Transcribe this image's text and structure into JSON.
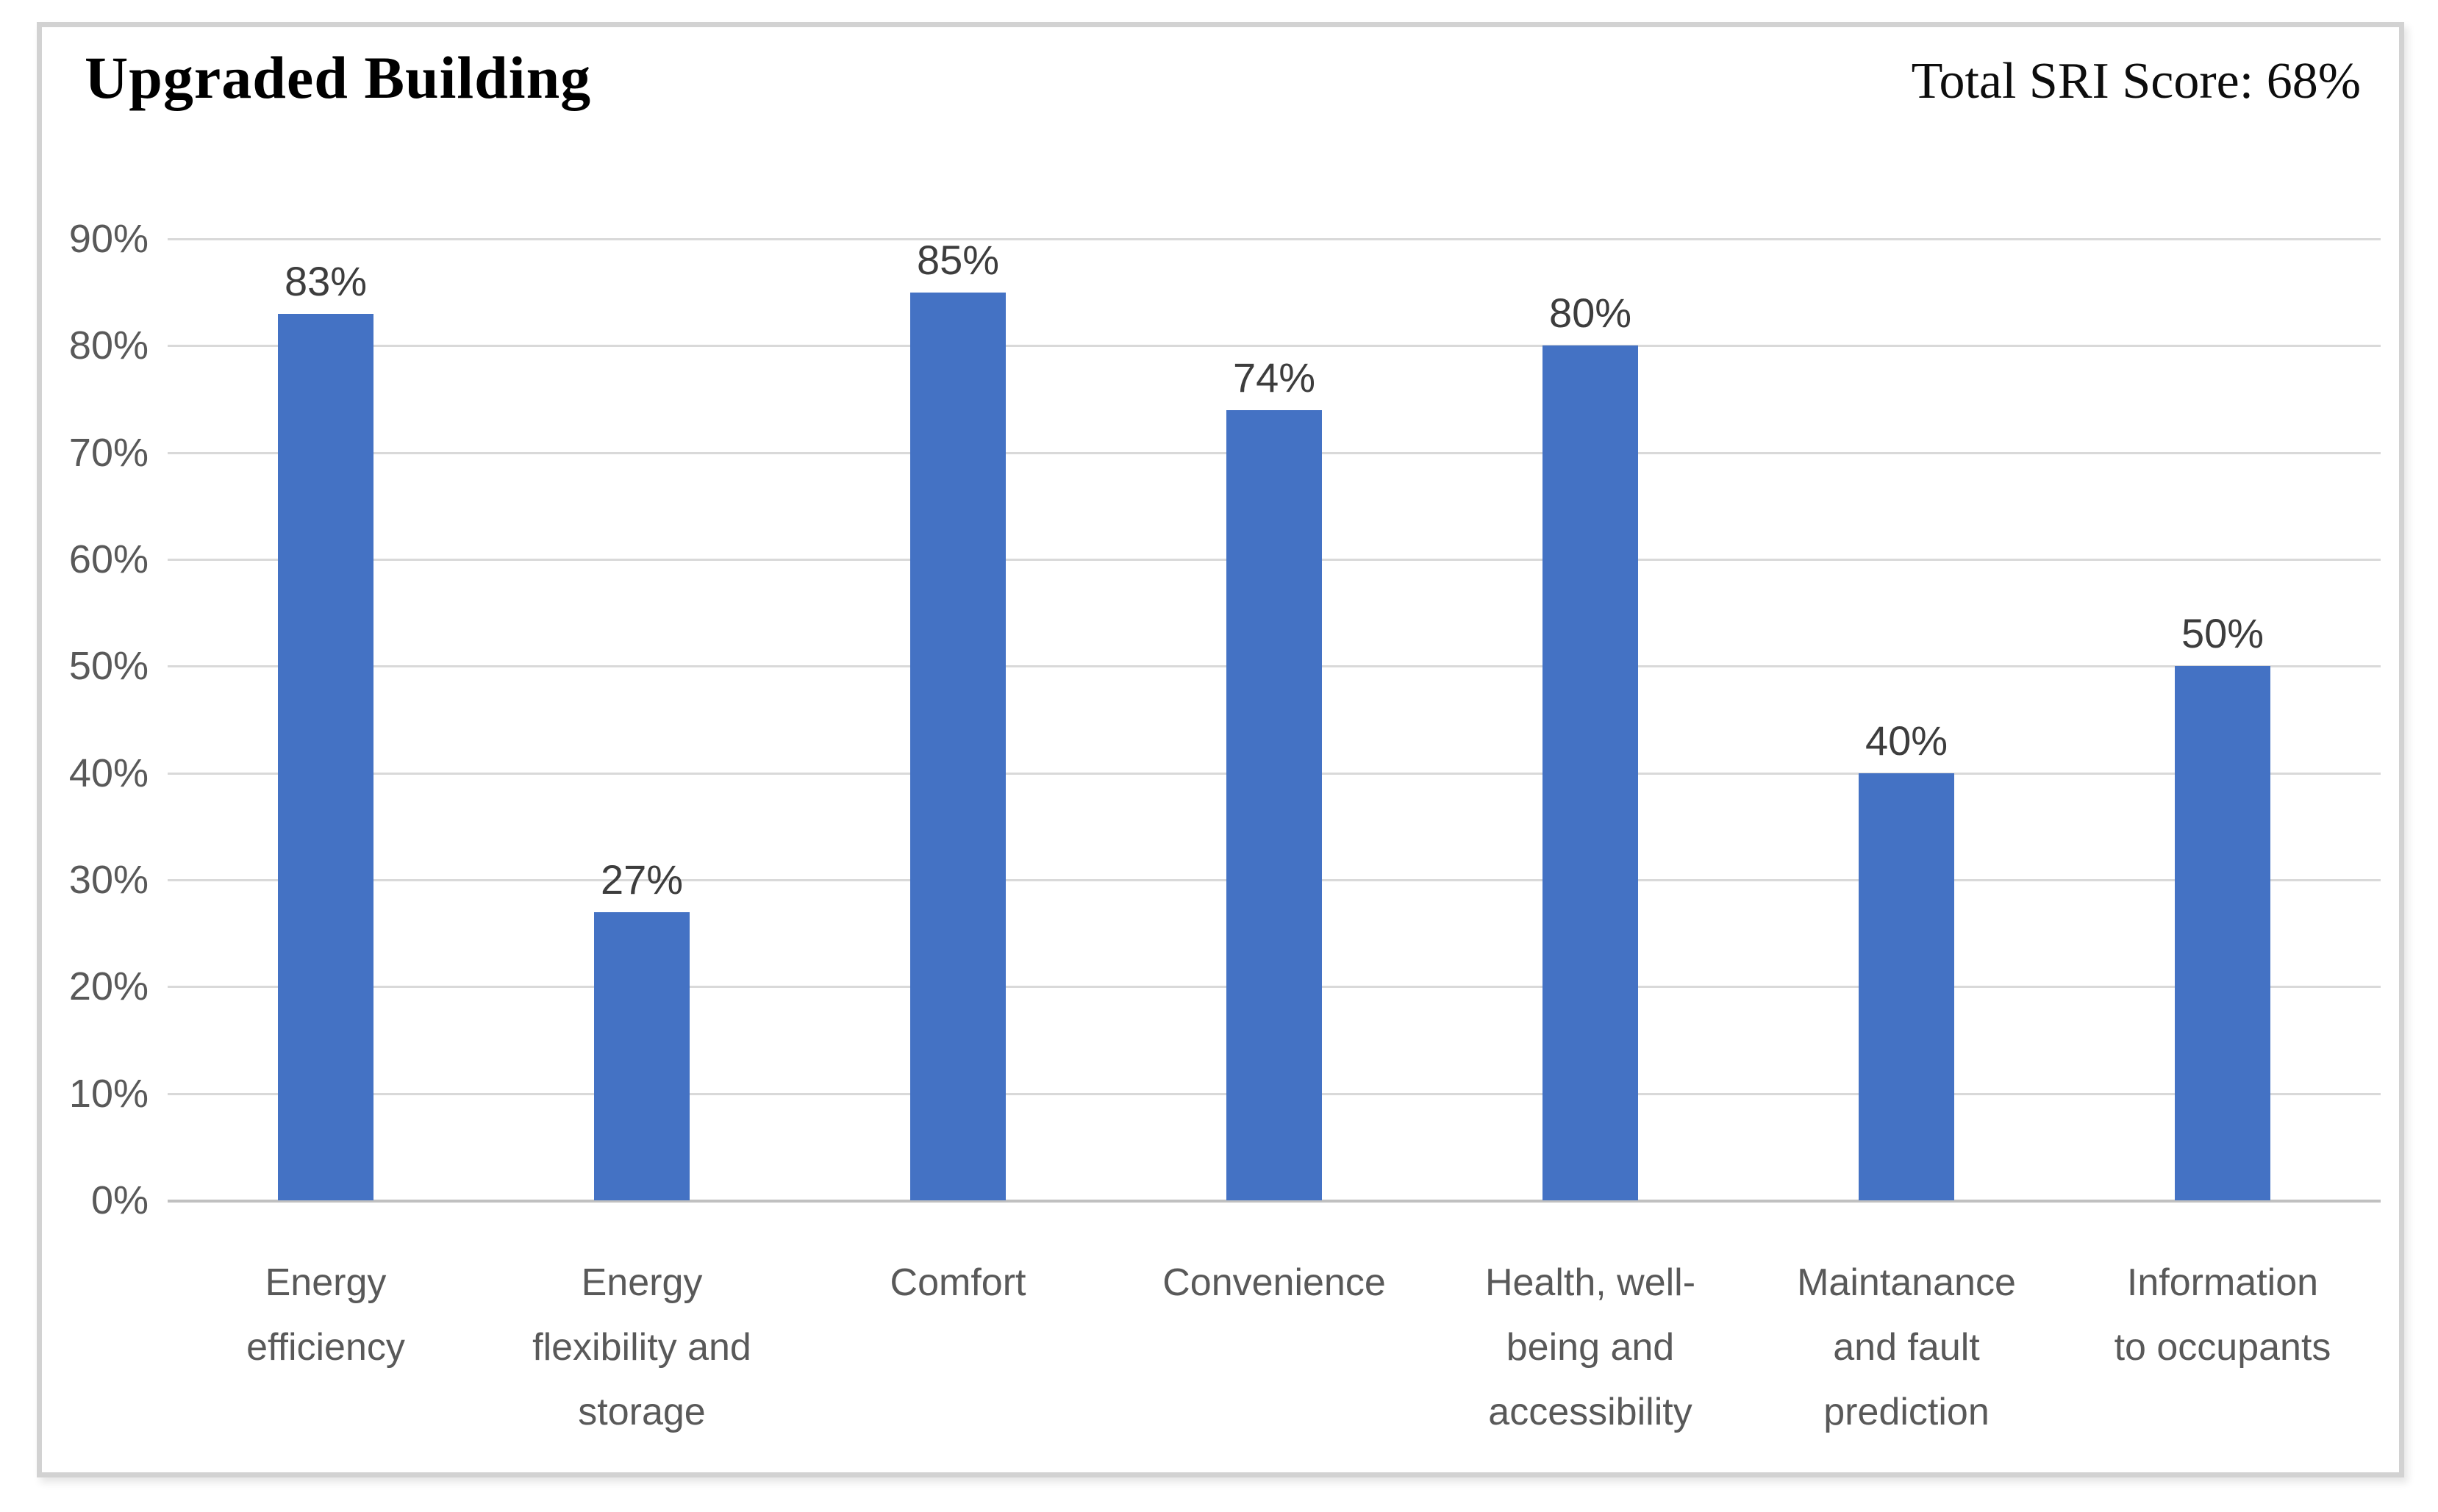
{
  "header": {
    "title": "Upgraded Building",
    "total_score": "Total SRI Score: 68%"
  },
  "chart_data": {
    "type": "bar",
    "title": "Upgraded Building",
    "annotation": "Total SRI Score: 68%",
    "categories": [
      "Energy efficiency",
      "Energy flexibility and storage",
      "Comfort",
      "Convenience",
      "Health, well-being and accessibility",
      "Maintanance and fault prediction",
      "Information to occupants"
    ],
    "category_lines": [
      [
        "Energy",
        "efficiency"
      ],
      [
        "Energy",
        "flexibility and",
        "storage"
      ],
      [
        "Comfort"
      ],
      [
        "Convenience"
      ],
      [
        "Health, well-",
        "being and",
        "accessibility"
      ],
      [
        "Maintanance",
        "and fault",
        "prediction"
      ],
      [
        "Information",
        "to occupants"
      ]
    ],
    "values": [
      83,
      27,
      85,
      74,
      80,
      40,
      50
    ],
    "data_labels": [
      "83%",
      "27%",
      "85%",
      "74%",
      "80%",
      "40%",
      "50%"
    ],
    "y_tick_labels": [
      "90%",
      "80%",
      "70%",
      "60%",
      "50%",
      "40%",
      "30%",
      "20%",
      "10%",
      "0%"
    ],
    "ylim": [
      0,
      90
    ],
    "xlabel": "",
    "ylabel": "",
    "grid": true,
    "legend_position": "none",
    "bar_color": "#4472C4",
    "gridline_color": "#D9D9D9",
    "axis_line_color": "#C0C0C0",
    "tick_label_color": "#595959",
    "data_label_color": "#3D3D3D"
  }
}
